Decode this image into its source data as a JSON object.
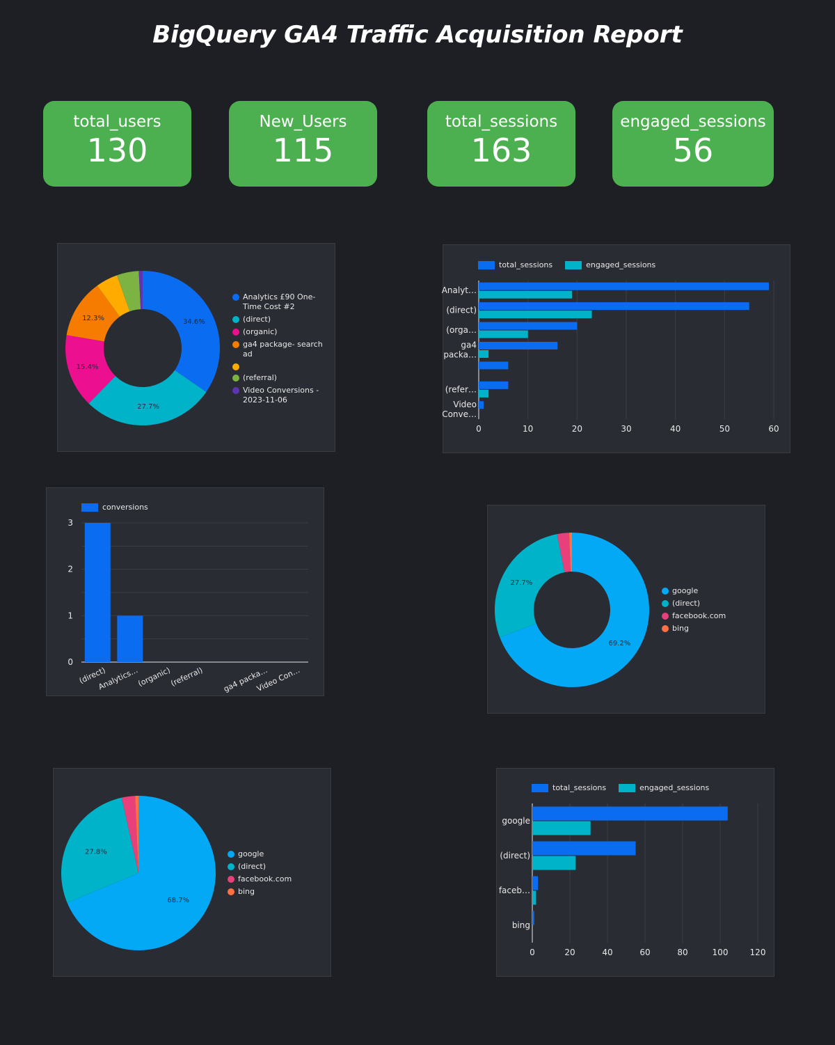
{
  "title": "BigQuery GA4 Traffic Acquisition Report",
  "kpis": [
    {
      "label": "total_users",
      "value": "130"
    },
    {
      "label": "New_Users",
      "value": "115"
    },
    {
      "label": "total_sessions",
      "value": "163"
    },
    {
      "label": "engaged_sessions",
      "value": "56"
    }
  ],
  "colors": {
    "background": "#1e1f24",
    "card": "#2a2c33",
    "kpi": "#4caf50",
    "blue": "#0a6cf1",
    "teal": "#00b3c8",
    "sky": "#03a9f4",
    "pink": "#ec0f8f",
    "rose": "#e8407a",
    "orange": "#f57c00",
    "amber": "#ffab00",
    "green": "#7cb342",
    "purple": "#5e35b1",
    "coral": "#ff7043"
  },
  "chart_data": [
    {
      "type": "pie",
      "style": "donut",
      "labels": [
        "Analytics £90 One-Time Cost #2",
        "(direct)",
        "(organic)",
        "ga4 package- search ad",
        "",
        "(referral)",
        "Video Conversions - 2023-11-06"
      ],
      "values": [
        34.6,
        27.7,
        15.4,
        12.3,
        4.6,
        4.6,
        0.8
      ],
      "data_labels": [
        "34.6%",
        "27.7%",
        "15.4%",
        "12.3%",
        "",
        "",
        ""
      ],
      "colors": [
        "#0a6cf1",
        "#00b3c8",
        "#ec0f8f",
        "#f57c00",
        "#ffab00",
        "#7cb342",
        "#5e35b1"
      ],
      "legend": "right"
    },
    {
      "type": "bar",
      "orientation": "horizontal",
      "categories": [
        "Analyt…",
        "(direct)",
        "(orga…",
        "ga4 packa…",
        "",
        "(refer…",
        "Video Conve…"
      ],
      "series": [
        {
          "name": "total_sessions",
          "color": "#0a6cf1",
          "values": [
            59,
            55,
            20,
            16,
            6,
            6,
            1
          ]
        },
        {
          "name": "engaged_sessions",
          "color": "#00b3c8",
          "values": [
            19,
            23,
            10,
            2,
            0,
            2,
            0
          ]
        }
      ],
      "xticks": [
        "0",
        "10",
        "20",
        "30",
        "40",
        "50",
        "60"
      ],
      "xlim": [
        0,
        60
      ],
      "grid": true,
      "legend": "top-left"
    },
    {
      "type": "bar",
      "orientation": "vertical",
      "categories": [
        "(direct)",
        "Analytics…",
        "(organic)",
        "(referral)",
        "",
        "ga4 packa…",
        "Video Con…"
      ],
      "series": [
        {
          "name": "conversions",
          "color": "#0a6cf1",
          "values": [
            3,
            1,
            0,
            0,
            0,
            0,
            0
          ]
        }
      ],
      "yticks": [
        "0",
        "1",
        "2",
        "3"
      ],
      "ylim": [
        0,
        3
      ],
      "grid": true,
      "legend": "top-left"
    },
    {
      "type": "pie",
      "style": "donut",
      "labels": [
        "google",
        "(direct)",
        "facebook.com",
        "bing"
      ],
      "values": [
        69.2,
        27.7,
        2.5,
        0.6
      ],
      "data_labels": [
        "69.2%",
        "27.7%",
        "",
        ""
      ],
      "colors": [
        "#03a9f4",
        "#00b3c8",
        "#e8407a",
        "#ff7043"
      ],
      "legend": "right"
    },
    {
      "type": "pie",
      "labels": [
        "google",
        "(direct)",
        "facebook.com",
        "bing"
      ],
      "values": [
        68.7,
        27.8,
        2.8,
        0.7
      ],
      "data_labels": [
        "68.7%",
        "27.8%",
        "",
        ""
      ],
      "colors": [
        "#03a9f4",
        "#00b3c8",
        "#e8407a",
        "#ff7043"
      ],
      "legend": "right"
    },
    {
      "type": "bar",
      "orientation": "horizontal",
      "categories": [
        "google",
        "(direct)",
        "faceb…",
        "bing"
      ],
      "series": [
        {
          "name": "total_sessions",
          "color": "#0a6cf1",
          "values": [
            104,
            55,
            3,
            1
          ]
        },
        {
          "name": "engaged_sessions",
          "color": "#00b3c8",
          "values": [
            31,
            23,
            2,
            0
          ]
        }
      ],
      "xticks": [
        "0",
        "20",
        "40",
        "60",
        "80",
        "100",
        "120"
      ],
      "xlim": [
        0,
        120
      ],
      "grid": true,
      "legend": "top-left"
    }
  ]
}
